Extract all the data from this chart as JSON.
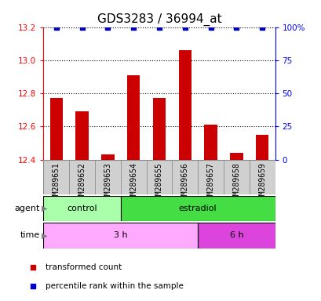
{
  "title": "GDS3283 / 36994_at",
  "samples": [
    "GSM289651",
    "GSM289652",
    "GSM289653",
    "GSM289654",
    "GSM289655",
    "GSM289656",
    "GSM289657",
    "GSM289658",
    "GSM289659"
  ],
  "bar_values": [
    12.77,
    12.69,
    12.43,
    12.91,
    12.77,
    13.06,
    12.61,
    12.44,
    12.55
  ],
  "percentile_values": [
    100,
    100,
    100,
    100,
    100,
    100,
    100,
    100,
    100
  ],
  "ylim_left": [
    12.4,
    13.2
  ],
  "ylim_right": [
    0,
    100
  ],
  "yticks_left": [
    12.4,
    12.6,
    12.8,
    13.0,
    13.2
  ],
  "yticks_right": [
    0,
    25,
    50,
    75,
    100
  ],
  "bar_color": "#cc0000",
  "dot_color": "#0000cc",
  "bar_width": 0.5,
  "agent_labels": [
    {
      "label": "control",
      "start": 0,
      "end": 3,
      "color": "#aaffaa"
    },
    {
      "label": "estradiol",
      "start": 3,
      "end": 9,
      "color": "#44dd44"
    }
  ],
  "time_labels": [
    {
      "label": "3 h",
      "start": 0,
      "end": 6,
      "color": "#ffaaff"
    },
    {
      "label": "6 h",
      "start": 6,
      "end": 9,
      "color": "#dd44dd"
    }
  ],
  "legend_red_label": "transformed count",
  "legend_blue_label": "percentile rank within the sample",
  "agent_row_label": "agent",
  "time_row_label": "time",
  "title_fontsize": 11,
  "tick_label_fontsize": 7.5,
  "sample_label_fontsize": 7,
  "row_label_fontsize": 8,
  "legend_fontsize": 7.5
}
